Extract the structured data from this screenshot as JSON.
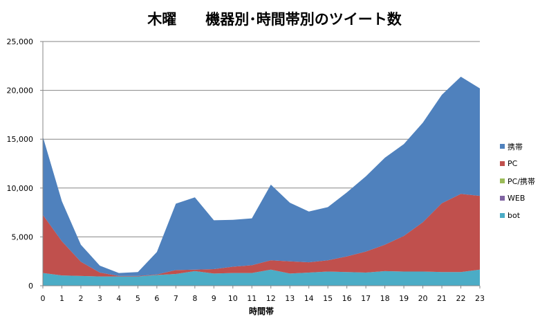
{
  "chart_data": {
    "type": "area",
    "stacked": true,
    "title": "木曜　　機器別･時間帯別のツイート数",
    "xlabel": "時間帯",
    "ylabel": "",
    "x": [
      0,
      1,
      2,
      3,
      4,
      5,
      6,
      7,
      8,
      9,
      10,
      11,
      12,
      13,
      14,
      15,
      16,
      17,
      18,
      19,
      20,
      21,
      22,
      23
    ],
    "ylim": [
      0,
      25000
    ],
    "yticks": [
      0,
      5000,
      10000,
      15000,
      20000,
      25000
    ],
    "ytick_labels": [
      "0",
      "5,000",
      "10,000",
      "15,000",
      "20,000",
      "25,000"
    ],
    "grid": true,
    "legend_position": "right",
    "series": [
      {
        "name": "bot",
        "color": "#4bacc6",
        "values": [
          1300,
          1050,
          1000,
          950,
          950,
          950,
          1100,
          1200,
          1500,
          1250,
          1300,
          1300,
          1650,
          1250,
          1350,
          1450,
          1400,
          1350,
          1500,
          1450,
          1450,
          1400,
          1400,
          1650
        ]
      },
      {
        "name": "WEB",
        "color": "#8064a2",
        "values": [
          0,
          0,
          0,
          0,
          0,
          0,
          0,
          0,
          0,
          0,
          0,
          0,
          0,
          0,
          0,
          0,
          0,
          0,
          0,
          0,
          0,
          0,
          0,
          0
        ]
      },
      {
        "name": "PC/携帯",
        "color": "#9bbb59",
        "values": [
          0,
          0,
          0,
          0,
          0,
          0,
          0,
          0,
          0,
          0,
          0,
          0,
          0,
          0,
          0,
          0,
          0,
          0,
          0,
          0,
          0,
          0,
          0,
          0
        ]
      },
      {
        "name": "PC",
        "color": "#c0504d",
        "values": [
          5950,
          3500,
          1450,
          400,
          50,
          50,
          50,
          400,
          150,
          450,
          650,
          800,
          950,
          1250,
          1050,
          1150,
          1600,
          2150,
          2700,
          3650,
          5050,
          7050,
          8000,
          7550
        ]
      },
      {
        "name": "携帯",
        "color": "#4f81bd",
        "values": [
          8000,
          4100,
          1750,
          700,
          300,
          400,
          2300,
          6800,
          7400,
          5000,
          4800,
          4800,
          7750,
          6000,
          5200,
          5450,
          6550,
          7700,
          8900,
          9400,
          10200,
          11100,
          12000,
          11000
        ]
      }
    ],
    "legend_order": [
      "携帯",
      "PC",
      "PC/携帯",
      "WEB",
      "bot"
    ]
  }
}
